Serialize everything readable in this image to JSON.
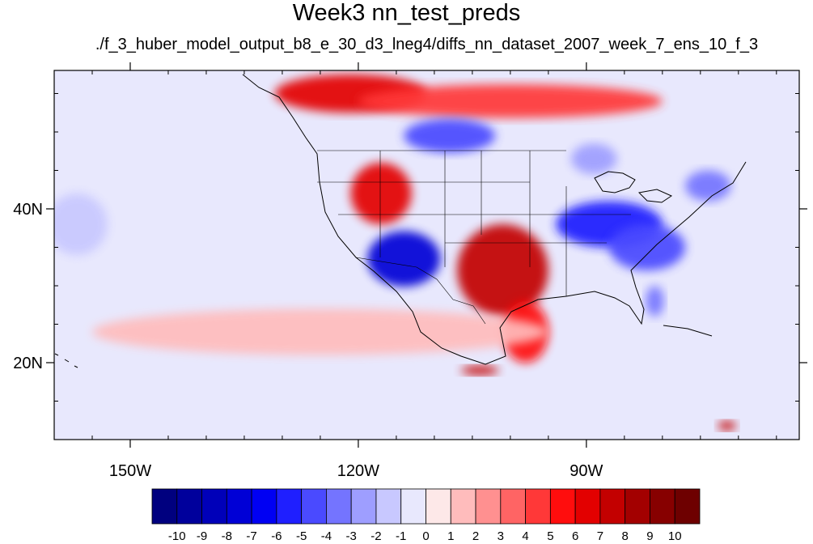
{
  "title": "Week3 nn_test_preds",
  "subtitle": "./f_3_huber_model_output_b8_e_30_d3_lneg4/diffs_nn_dataset_2007_week_7_ens_10_f_3",
  "map": {
    "projection": "cylindrical equidistant",
    "lon_range": [
      -160,
      -62
    ],
    "lat_range": [
      10,
      58
    ],
    "lon_ticks": [
      {
        "value": -150,
        "label": "150W"
      },
      {
        "value": -120,
        "label": "120W"
      },
      {
        "value": -90,
        "label": "90W"
      }
    ],
    "lat_ticks": [
      {
        "value": 20,
        "label": "20N"
      },
      {
        "value": 40,
        "label": "40N"
      }
    ]
  },
  "colorbar": {
    "levels": [
      "-10",
      "-9",
      "-8",
      "-7",
      "-6",
      "-5",
      "-4",
      "-3",
      "-2",
      "-1",
      "0",
      "1",
      "2",
      "3",
      "4",
      "5",
      "6",
      "7",
      "8",
      "9",
      "10"
    ],
    "colors": [
      "#00007f",
      "#00009c",
      "#0000b9",
      "#0000d6",
      "#0000f3",
      "#1f1fff",
      "#4a4aff",
      "#7474ff",
      "#9e9eff",
      "#c8c8ff",
      "#e8e8fd",
      "#fde8e8",
      "#ffbcbc",
      "#ff9090",
      "#ff6464",
      "#ff3838",
      "#ff0d0d",
      "#e30000",
      "#c30000",
      "#a30000",
      "#870000",
      "#6e0000"
    ]
  },
  "regions": [
    {
      "name": "alaska-canada-warm",
      "value": 6,
      "lon": -121,
      "lat": 55,
      "rx": 10,
      "ry": 2.5
    },
    {
      "name": "canada-warm-band",
      "value": 4,
      "lon": -100,
      "lat": 54,
      "rx": 20,
      "ry": 2.2
    },
    {
      "name": "northwest-cold-pocket",
      "value": -5,
      "lon": -108,
      "lat": 49.5,
      "rx": 6,
      "ry": 2.2
    },
    {
      "name": "great-basin-warm",
      "value": 6,
      "lon": -117,
      "lat": 42,
      "rx": 4,
      "ry": 4
    },
    {
      "name": "southwest-cold",
      "value": -8,
      "lon": -114,
      "lat": 33.5,
      "rx": 4.8,
      "ry": 3.6
    },
    {
      "name": "south-plains-warm",
      "value": 7,
      "lon": -101,
      "lat": 32,
      "rx": 6,
      "ry": 6
    },
    {
      "name": "mexico-warm",
      "value": 5,
      "lon": -98,
      "lat": 24,
      "rx": 3,
      "ry": 4
    },
    {
      "name": "midwest-cold",
      "value": -6,
      "lon": -87,
      "lat": 38,
      "rx": 7,
      "ry": 3
    },
    {
      "name": "southeast-cold",
      "value": -5,
      "lon": -82,
      "lat": 35,
      "rx": 5,
      "ry": 3
    },
    {
      "name": "florida-cold",
      "value": -4,
      "lon": -81,
      "lat": 28,
      "rx": 1.2,
      "ry": 2
    },
    {
      "name": "new-england-cold",
      "value": -4,
      "lon": -74,
      "lat": 43,
      "rx": 3,
      "ry": 2
    },
    {
      "name": "great-lakes-cold",
      "value": -3,
      "lon": -89,
      "lat": 46.5,
      "rx": 3,
      "ry": 2
    },
    {
      "name": "gulf-warm-spot",
      "value": 7,
      "lon": -104,
      "lat": 19,
      "rx": 2.5,
      "ry": 0.6
    },
    {
      "name": "pacific-warm-band",
      "value": 1,
      "lon": -125,
      "lat": 24,
      "rx": 30,
      "ry": 3
    },
    {
      "name": "pacific-cool-west",
      "value": -2,
      "lon": -157,
      "lat": 38,
      "rx": 4,
      "ry": 4
    },
    {
      "name": "caribbean-warm",
      "value": 7,
      "lon": -71.5,
      "lat": 11.8,
      "rx": 1.2,
      "ry": 0.6
    }
  ]
}
